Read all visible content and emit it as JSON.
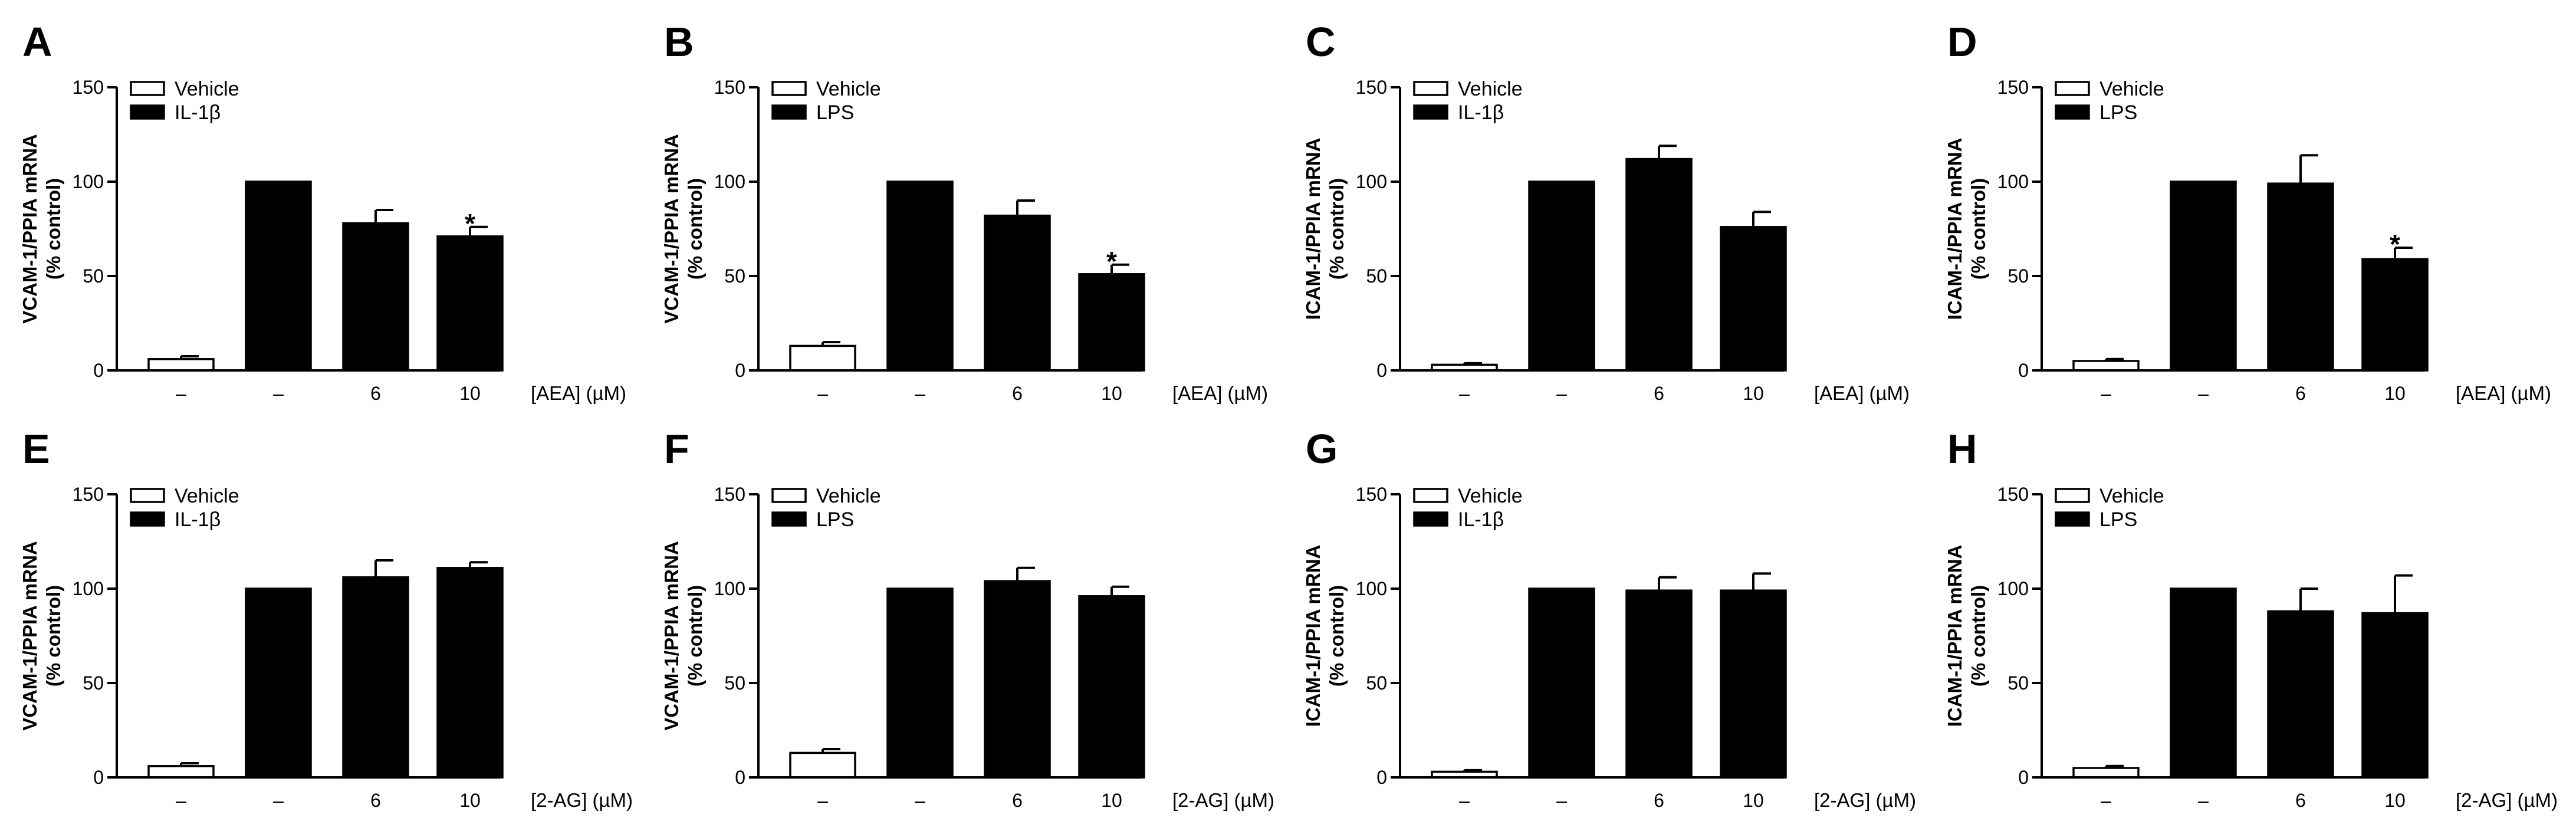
{
  "chart_data": [
    {
      "panel": "A",
      "type": "bar",
      "ylabel": [
        "VCAM-1/PPIA mRNA",
        "(% control)"
      ],
      "ylim": [
        0,
        150
      ],
      "yticks": [
        0,
        50,
        100,
        150
      ],
      "categories": [
        "–",
        "–",
        "6",
        "10"
      ],
      "dose_label": "[AEA] (µM)",
      "legend": [
        "Vehicle",
        "IL-1β"
      ],
      "values": [
        6,
        100,
        78,
        71
      ],
      "errors": [
        1.5,
        0,
        7,
        5
      ],
      "fills": [
        "white",
        "black",
        "black",
        "black"
      ],
      "significance": [
        "",
        "",
        "",
        "*"
      ]
    },
    {
      "panel": "B",
      "type": "bar",
      "ylabel": [
        "VCAM-1/PPIA mRNA",
        "(% control)"
      ],
      "ylim": [
        0,
        150
      ],
      "yticks": [
        0,
        50,
        100,
        150
      ],
      "categories": [
        "–",
        "–",
        "6",
        "10"
      ],
      "dose_label": "[AEA] (µM)",
      "legend": [
        "Vehicle",
        "LPS"
      ],
      "values": [
        13,
        100,
        82,
        51
      ],
      "errors": [
        2,
        0,
        8,
        5
      ],
      "fills": [
        "white",
        "black",
        "black",
        "black"
      ],
      "significance": [
        "",
        "",
        "",
        "*"
      ]
    },
    {
      "panel": "C",
      "type": "bar",
      "ylabel": [
        "ICAM-1/PPIA mRNA",
        "(% control)"
      ],
      "ylim": [
        0,
        150
      ],
      "yticks": [
        0,
        50,
        100,
        150
      ],
      "categories": [
        "–",
        "–",
        "6",
        "10"
      ],
      "dose_label": "[AEA] (µM)",
      "legend": [
        "Vehicle",
        "IL-1β"
      ],
      "values": [
        3,
        100,
        112,
        76
      ],
      "errors": [
        0.8,
        0,
        7,
        8
      ],
      "fills": [
        "white",
        "black",
        "black",
        "black"
      ],
      "significance": [
        "",
        "",
        "",
        ""
      ]
    },
    {
      "panel": "D",
      "type": "bar",
      "ylabel": [
        "ICAM-1/PPIA mRNA",
        "(% control)"
      ],
      "ylim": [
        0,
        150
      ],
      "yticks": [
        0,
        50,
        100,
        150
      ],
      "categories": [
        "–",
        "–",
        "6",
        "10"
      ],
      "dose_label": "[AEA] (µM)",
      "legend": [
        "Vehicle",
        "LPS"
      ],
      "values": [
        5,
        100,
        99,
        59
      ],
      "errors": [
        1,
        0,
        15,
        6
      ],
      "fills": [
        "white",
        "black",
        "black",
        "black"
      ],
      "significance": [
        "",
        "",
        "",
        "*"
      ]
    },
    {
      "panel": "E",
      "type": "bar",
      "ylabel": [
        "VCAM-1/PPIA mRNA",
        "(% control)"
      ],
      "ylim": [
        0,
        150
      ],
      "yticks": [
        0,
        50,
        100,
        150
      ],
      "categories": [
        "–",
        "–",
        "6",
        "10"
      ],
      "dose_label": "[2-AG] (µM)",
      "legend": [
        "Vehicle",
        "IL-1β"
      ],
      "values": [
        6,
        100,
        106,
        111
      ],
      "errors": [
        1.5,
        0,
        9,
        3
      ],
      "fills": [
        "white",
        "black",
        "black",
        "black"
      ],
      "significance": [
        "",
        "",
        "",
        ""
      ]
    },
    {
      "panel": "F",
      "type": "bar",
      "ylabel": [
        "VCAM-1/PPIA mRNA",
        "(% control)"
      ],
      "ylim": [
        0,
        150
      ],
      "yticks": [
        0,
        50,
        100,
        150
      ],
      "categories": [
        "–",
        "–",
        "6",
        "10"
      ],
      "dose_label": "[2-AG] (µM)",
      "legend": [
        "Vehicle",
        "LPS"
      ],
      "values": [
        13,
        100,
        104,
        96
      ],
      "errors": [
        2,
        0,
        7,
        5
      ],
      "fills": [
        "white",
        "black",
        "black",
        "black"
      ],
      "significance": [
        "",
        "",
        "",
        ""
      ]
    },
    {
      "panel": "G",
      "type": "bar",
      "ylabel": [
        "ICAM-1/PPIA mRNA",
        "(% control)"
      ],
      "ylim": [
        0,
        150
      ],
      "yticks": [
        0,
        50,
        100,
        150
      ],
      "categories": [
        "–",
        "–",
        "6",
        "10"
      ],
      "dose_label": "[2-AG] (µM)",
      "legend": [
        "Vehicle",
        "IL-1β"
      ],
      "values": [
        3,
        100,
        99,
        99
      ],
      "errors": [
        0.8,
        0,
        7,
        9
      ],
      "fills": [
        "white",
        "black",
        "black",
        "black"
      ],
      "significance": [
        "",
        "",
        "",
        ""
      ]
    },
    {
      "panel": "H",
      "type": "bar",
      "ylabel": [
        "ICAM-1/PPIA mRNA",
        "(% control)"
      ],
      "ylim": [
        0,
        150
      ],
      "yticks": [
        0,
        50,
        100,
        150
      ],
      "categories": [
        "–",
        "–",
        "6",
        "10"
      ],
      "dose_label": "[2-AG] (µM)",
      "legend": [
        "Vehicle",
        "LPS"
      ],
      "values": [
        5,
        100,
        88,
        87
      ],
      "errors": [
        1,
        0,
        12,
        20
      ],
      "fills": [
        "white",
        "black",
        "black",
        "black"
      ],
      "significance": [
        "",
        "",
        "",
        ""
      ]
    }
  ]
}
